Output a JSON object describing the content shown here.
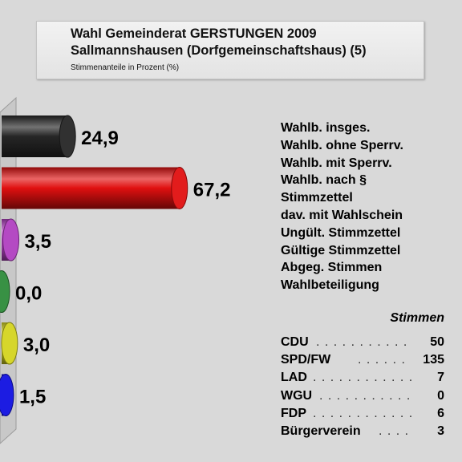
{
  "header": {
    "title_line1": "Wahl Gemeinderat GERSTUNGEN 2009",
    "title_line2": "Sallmannshausen (Dorfgemeinschaftshaus) (5)",
    "subtitle": "Stimmenanteile in Prozent (%)"
  },
  "stats_labels": [
    "Wahlb. insges.",
    "Wahlb. ohne Sperrv.",
    "Wahlb. mit Sperrv.",
    "Wahlb. nach §",
    "Stimmzettel",
    "dav. mit Wahlschein",
    "Ungült. Stimmzettel",
    "Gültige Stimmzettel",
    "Abgeg. Stimmen",
    "Wahlbeteiligung"
  ],
  "votes": {
    "header": "Stimmen",
    "rows": [
      {
        "party": "CDU",
        "dots": ". . . . . . . . . . .",
        "count": "50"
      },
      {
        "party": "SPD/FW",
        "dots": ". . . . . .",
        "count": "135"
      },
      {
        "party": "LAD",
        "dots": ". . . . . . . . . . . .",
        "count": "7"
      },
      {
        "party": "WGU",
        "dots": ". . . . . . . . . . .",
        "count": "0"
      },
      {
        "party": "FDP",
        "dots": ". . . . . . . . . . . .",
        "count": "6"
      },
      {
        "party": "Bürgerverein",
        "dots": ". . . .",
        "count": "3"
      }
    ]
  },
  "chart_data": {
    "type": "bar",
    "orientation": "horizontal",
    "categories": [
      "CDU",
      "SPD/FW",
      "LAD",
      "WGU",
      "FDP",
      "Bürgerverein"
    ],
    "values": [
      24.9,
      67.2,
      3.5,
      0.0,
      3.0,
      1.5
    ],
    "value_labels": [
      "24,9",
      "67,2",
      "3,5",
      "0,0",
      "3,0",
      "1,5"
    ],
    "colors": [
      "#262626",
      "#e01010",
      "#b040c0",
      "#2e8b3a",
      "#d4d420",
      "#1010e0"
    ],
    "title": "",
    "xlabel": "",
    "ylabel": "",
    "xlim": [
      0,
      80
    ],
    "grid": false
  }
}
